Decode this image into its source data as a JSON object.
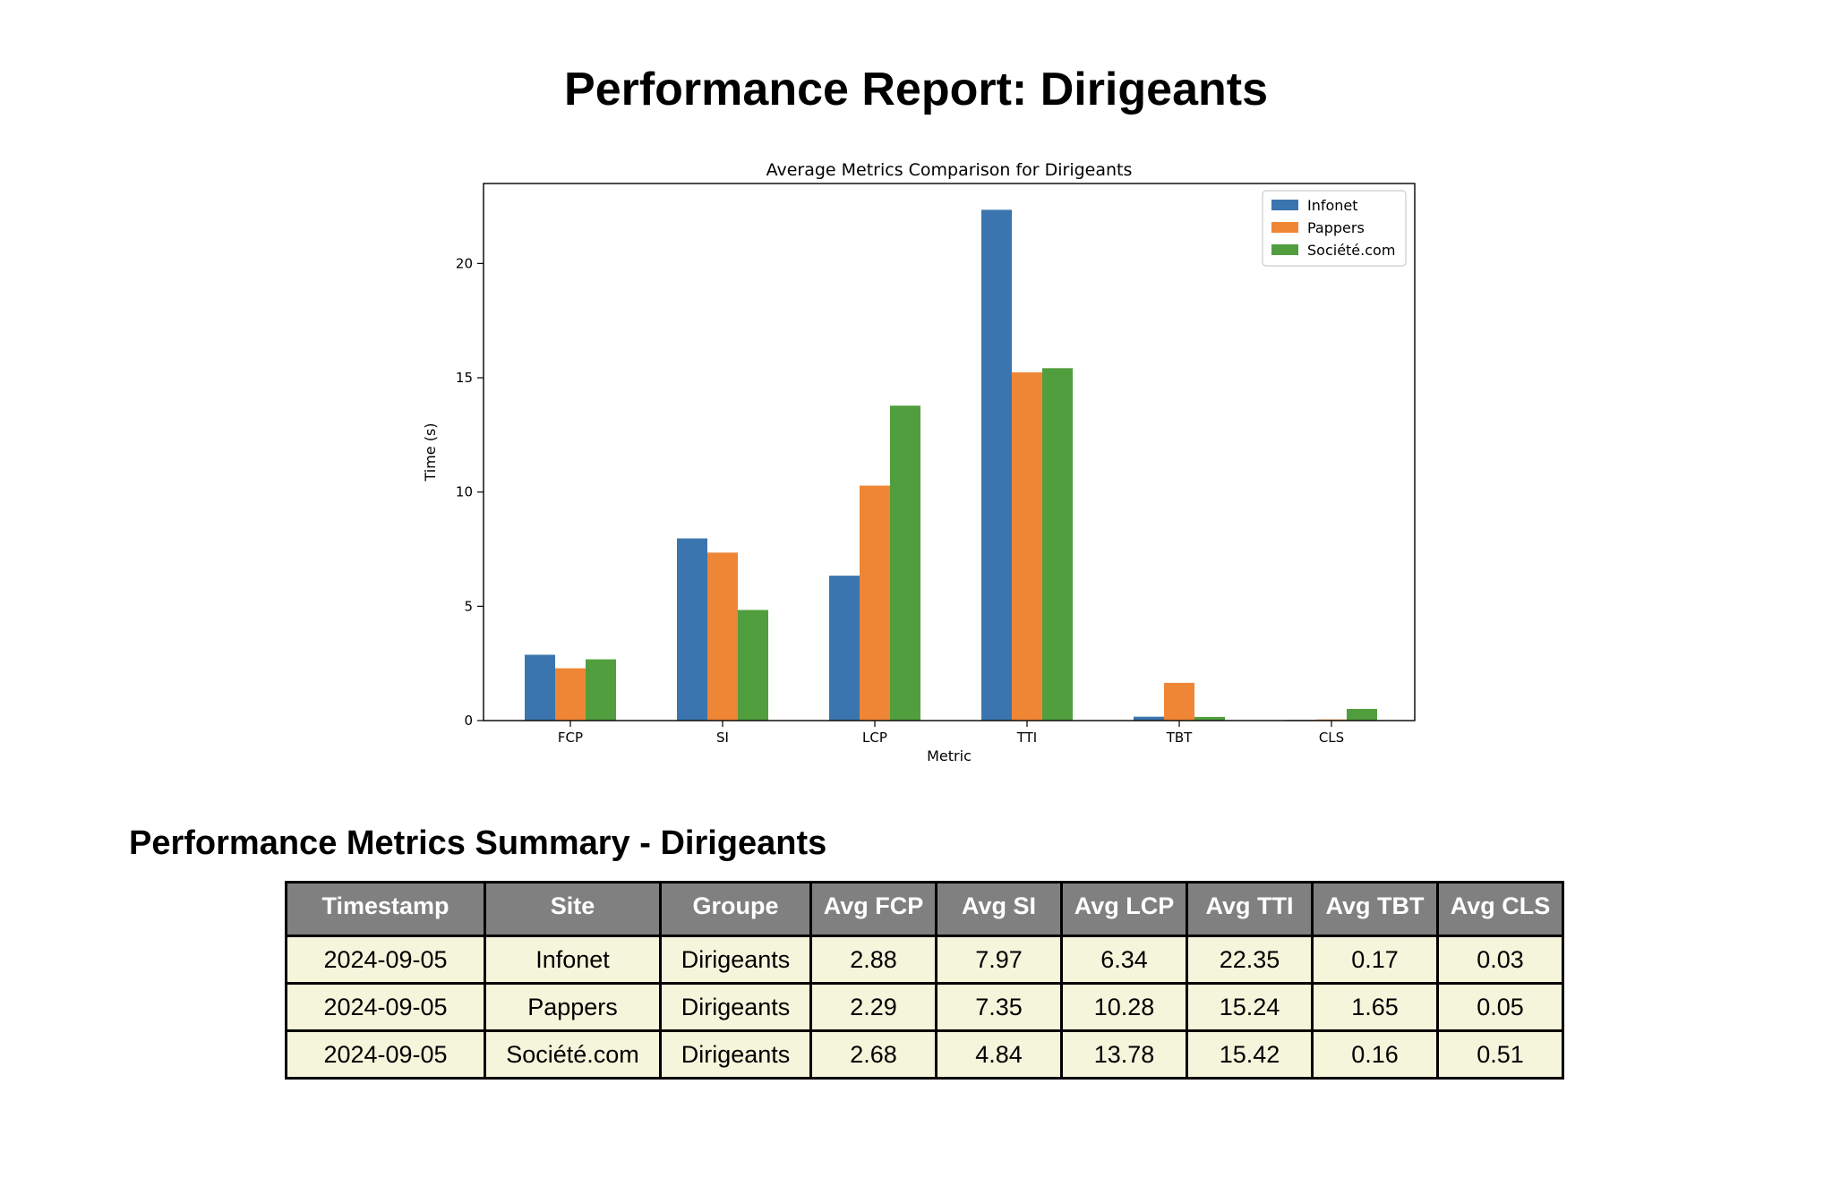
{
  "page": {
    "title": "Performance Report: Dirigeants"
  },
  "chart_data": {
    "type": "bar",
    "title": "Average Metrics Comparison for Dirigeants",
    "xlabel": "Metric",
    "ylabel": "Time (s)",
    "categories": [
      "FCP",
      "SI",
      "LCP",
      "TTI",
      "TBT",
      "CLS"
    ],
    "ylim": [
      0,
      23.5
    ],
    "yticks": [
      0,
      5,
      10,
      15,
      20
    ],
    "legend_position": "top-right",
    "grid": false,
    "series": [
      {
        "name": "Infonet",
        "color": "#3b75af",
        "values": [
          2.88,
          7.97,
          6.34,
          22.35,
          0.17,
          0.03
        ]
      },
      {
        "name": "Pappers",
        "color": "#ef8636",
        "values": [
          2.29,
          7.35,
          10.28,
          15.24,
          1.65,
          0.05
        ]
      },
      {
        "name": "Société.com",
        "color": "#519e3e",
        "values": [
          2.68,
          4.84,
          13.78,
          15.42,
          0.16,
          0.51
        ]
      }
    ]
  },
  "summary": {
    "title": "Performance Metrics Summary - Dirigeants",
    "headers": [
      "Timestamp",
      "Site",
      "Groupe",
      "Avg FCP",
      "Avg SI",
      "Avg LCP",
      "Avg TTI",
      "Avg TBT",
      "Avg CLS"
    ],
    "rows": [
      [
        "2024-09-05",
        "Infonet",
        "Dirigeants",
        "2.88",
        "7.97",
        "6.34",
        "22.35",
        "0.17",
        "0.03"
      ],
      [
        "2024-09-05",
        "Pappers",
        "Dirigeants",
        "2.29",
        "7.35",
        "10.28",
        "15.24",
        "1.65",
        "0.05"
      ],
      [
        "2024-09-05",
        "Société.com",
        "Dirigeants",
        "2.68",
        "4.84",
        "13.78",
        "15.42",
        "0.16",
        "0.51"
      ]
    ]
  }
}
